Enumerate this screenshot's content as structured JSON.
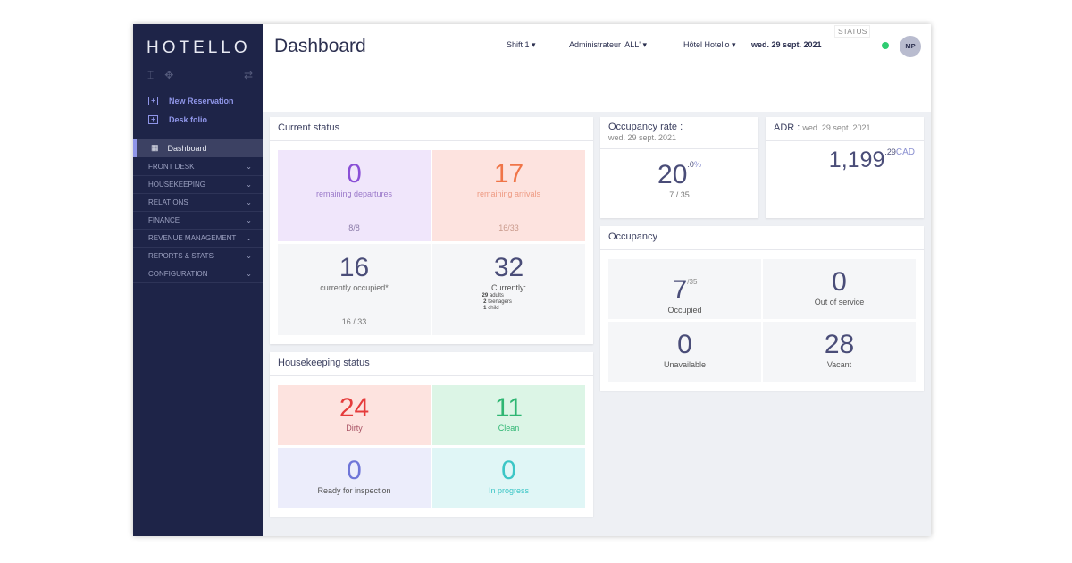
{
  "sidebar": {
    "logo": "HOTELLO",
    "new_reservation": "New Reservation",
    "desk_folio": "Desk folio",
    "dashboard": "Dashboard",
    "items": [
      {
        "label": "FRONT DESK"
      },
      {
        "label": "HOUSEKEEPING"
      },
      {
        "label": "RELATIONS"
      },
      {
        "label": "FINANCE"
      },
      {
        "label": "REVENUE MANAGEMENT"
      },
      {
        "label": "REPORTS & STATS"
      },
      {
        "label": "CONFIGURATION"
      }
    ]
  },
  "header": {
    "title": "Dashboard",
    "shift": "Shift 1",
    "user": "Administrateur 'ALL'",
    "hotel": "Hôtel Hotello",
    "date": "wed. 29 sept. 2021",
    "status": "STATUS",
    "avatar": "MP"
  },
  "current_status": {
    "title": "Current status",
    "departures": {
      "value": "0",
      "label": "remaining departures",
      "sub": "8/8"
    },
    "arrivals": {
      "value": "17",
      "label": "remaining arrivals",
      "sub": "16/33"
    },
    "occupied": {
      "value": "16",
      "label": "currently occupied*",
      "sub": "16 / 33"
    },
    "guests": {
      "value": "32",
      "label": "Currently:",
      "adults": "29",
      "adults_label": "adults",
      "teens": "2",
      "teens_label": "teenagers",
      "child": "1",
      "child_label": "child"
    }
  },
  "housekeeping": {
    "title": "Housekeeping status",
    "dirty": {
      "value": "24",
      "label": "Dirty"
    },
    "clean": {
      "value": "11",
      "label": "Clean"
    },
    "inspection": {
      "value": "0",
      "label": "Ready for inspection"
    },
    "progress": {
      "value": "0",
      "label": "In progress"
    }
  },
  "occupancy_rate": {
    "title": "Occupancy rate :",
    "date": "wed. 29 sept. 2021",
    "value": "20",
    "decimal": ".0",
    "unit": "%",
    "sub": "7 / 35"
  },
  "adr": {
    "title": "ADR :",
    "date": "wed. 29 sept. 2021",
    "value": "1,199",
    "decimal": ".29",
    "currency": "CAD"
  },
  "occupancy": {
    "title": "Occupancy",
    "occupied": {
      "value": "7",
      "total": "/35",
      "label": "Occupied"
    },
    "oos": {
      "value": "0",
      "label": "Out of service"
    },
    "unavailable": {
      "value": "0",
      "label": "Unavailable"
    },
    "vacant": {
      "value": "28",
      "label": "Vacant"
    }
  }
}
